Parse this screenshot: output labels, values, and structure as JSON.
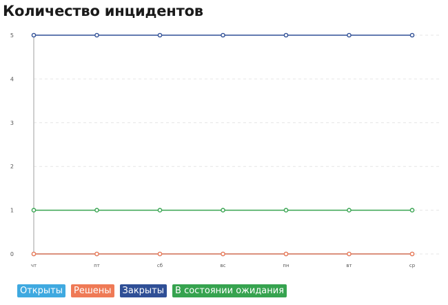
{
  "title": "Количество инцидентов",
  "legend": [
    {
      "label": "Открыты",
      "color": "#3fa9e0"
    },
    {
      "label": "Решены",
      "color": "#ef7a56"
    },
    {
      "label": "Закрыты",
      "color": "#2f4f96"
    },
    {
      "label": "В состоянии ожидания",
      "color": "#36a34f"
    }
  ],
  "chart_data": {
    "type": "line",
    "title": "Количество инцидентов",
    "categories": [
      "чт",
      "пт",
      "сб",
      "вс",
      "пн",
      "вт",
      "ср"
    ],
    "y_ticks": [
      "0",
      "1",
      "2",
      "3",
      "4",
      "5"
    ],
    "ylim": [
      0,
      5
    ],
    "grid": true,
    "legend_position": "bottom-left",
    "series": [
      {
        "name": "Открыты",
        "color": "#3fa9e0",
        "values": [
          0,
          0,
          0,
          0,
          0,
          0,
          0
        ]
      },
      {
        "name": "Решены",
        "color": "#ef7a56",
        "values": [
          0,
          0,
          0,
          0,
          0,
          0,
          0
        ]
      },
      {
        "name": "Закрыты",
        "color": "#2f4f96",
        "values": [
          5,
          5,
          5,
          5,
          5,
          5,
          5
        ]
      },
      {
        "name": "В состоянии ожидания",
        "color": "#36a34f",
        "values": [
          1,
          1,
          1,
          1,
          1,
          1,
          1
        ]
      }
    ]
  }
}
